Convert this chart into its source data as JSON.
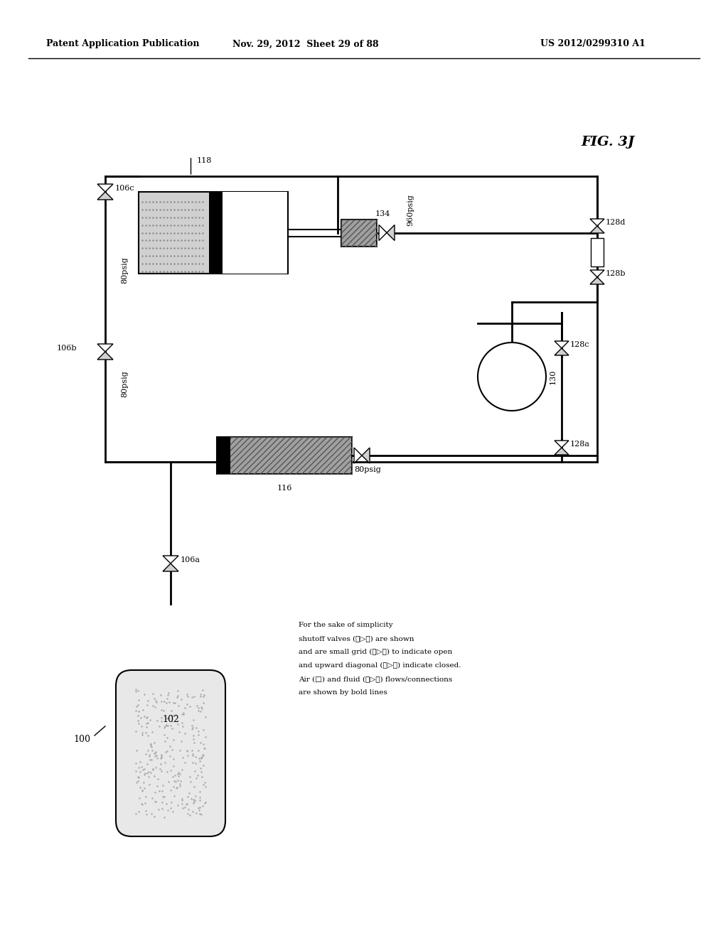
{
  "bg_color": "#ffffff",
  "header_left": "Patent Application Publication",
  "header_mid": "Nov. 29, 2012  Sheet 29 of 88",
  "header_right": "US 2012/0299310 A1",
  "fig_label": "FIG. 3J",
  "label_100": "100",
  "label_102": "102",
  "label_106a": "106a",
  "label_106b": "106b",
  "label_106c": "106c",
  "label_116": "116",
  "label_118": "118",
  "label_128a": "128a",
  "label_128b": "128b",
  "label_128c": "128c",
  "label_128d": "128d",
  "label_130": "130",
  "label_134": "134",
  "label_80psig_left": "80psig",
  "label_80psig_mid": "80psig",
  "label_80psig_bottom": "80psig",
  "label_960psig": "960psig",
  "note_lines": [
    "For the sake of simplicity",
    "shutoff valves (⊳▷⊲) are shown",
    "and are small grid (⊳▷⊲) to indicate open",
    "and upward diagonal (⊳▷⊲) indicate closed.",
    "Air (□) and fluid (⊳▷⊲) flows/connections",
    "are shown by bold lines"
  ]
}
